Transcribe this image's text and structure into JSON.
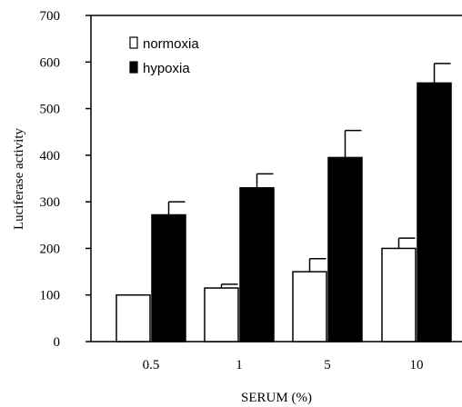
{
  "chart_data": {
    "type": "bar",
    "categories": [
      "0.5",
      "1",
      "5",
      "10"
    ],
    "series": [
      {
        "name": "normoxia",
        "values": [
          100,
          115,
          150,
          200
        ],
        "errors": [
          0,
          8,
          28,
          22
        ],
        "color": "#ffffff"
      },
      {
        "name": "hypoxia",
        "values": [
          272,
          330,
          395,
          555
        ],
        "errors": [
          28,
          30,
          58,
          42
        ],
        "color": "#000000"
      }
    ],
    "xlabel": "SERUM (%)",
    "ylabel": "Luciferase activity",
    "ylim": [
      0,
      700
    ],
    "yticks": [
      "0",
      "100",
      "200",
      "300",
      "400",
      "500",
      "600",
      "700"
    ],
    "grid": false,
    "legend": "top-left",
    "error_bars": "upper"
  }
}
